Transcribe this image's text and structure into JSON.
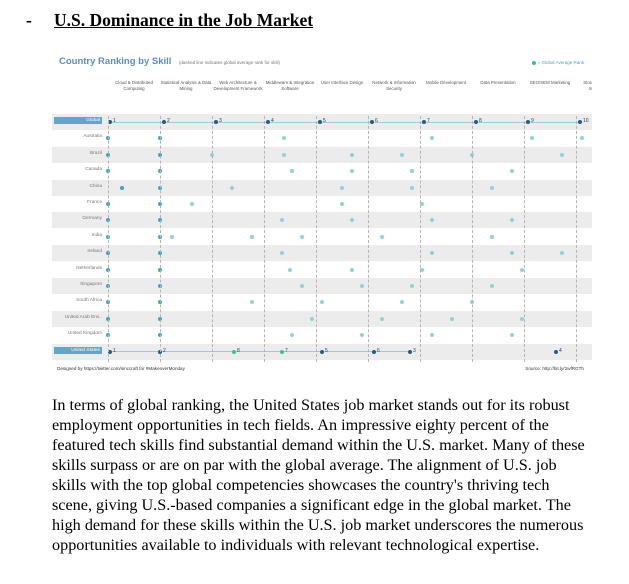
{
  "heading": {
    "dash": "-",
    "title": "U.S. Dominance in the Job Market"
  },
  "figure": {
    "title": "Country Ranking by Skill",
    "subtitle": "(dashed line indicates global average rank for skill)",
    "legend": "= Global Average Rank",
    "columns": [
      "Cloud & Distributed Computing",
      "Statistical Analysis & Data Mining",
      "Web Architecture & Development Framework",
      "Middleware & Integration Software",
      "User Interface Design",
      "Network & Information Security",
      "Mobile Development",
      "Data Presentation",
      "SEO/SEM Marketing",
      "Storage Systems & Management"
    ],
    "rows": [
      "Global",
      "Australia",
      "Brazil",
      "Canada",
      "China",
      "France",
      "Germany",
      "India",
      "Ireland",
      "Netherlands",
      "Singapore",
      "South Africa",
      "United Arab Emi..",
      "United Kingdom",
      "United States"
    ],
    "global_ranks": [
      "1",
      "2",
      "3",
      "4",
      "5",
      "6",
      "7",
      "8",
      "9",
      "10"
    ],
    "us_ranks": [
      "1",
      "2",
      "8",
      "7",
      "5",
      "6",
      "3",
      "4"
    ],
    "footer_left": "Designed by https://twitter.com/sinccraft for #MakeoverMonday",
    "footer_right": "Source: http://bit.ly/2wfRGTh",
    "colors": {
      "dark_marker": "#1d5f8f",
      "light_marker": "#8fd3d8",
      "green_marker": "#3bbf9b",
      "highlight": "#5fa8cc"
    }
  },
  "paragraph": "In terms of global ranking, the United States job market stands out for its robust employment opportunities in tech fields. An impressive eighty percent of the featured tech skills find substantial demand within the U.S. market. Many of these skills surpass or are on par with the global average. The alignment of U.S. job skills with the top global competencies showcases the country's thriving tech scene, giving U.S.-based companies a significant edge in the global market. The high demand for these skills within the U.S. job market underscores the numerous opportunities available to individuals with relevant technological expertise."
}
